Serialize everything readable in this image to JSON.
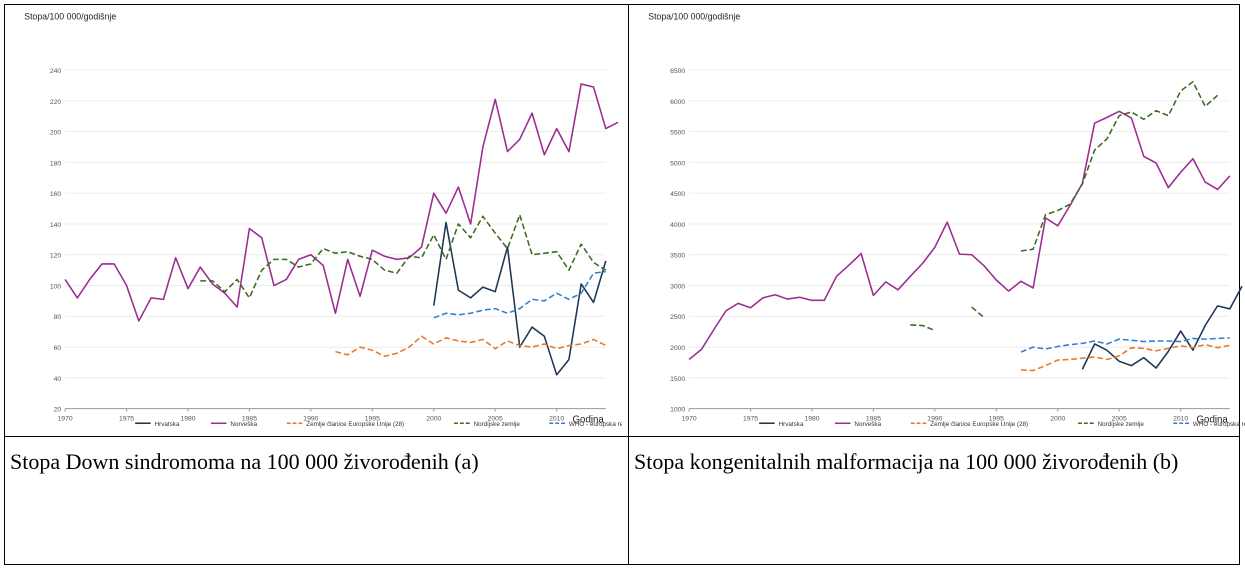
{
  "captions": {
    "a": "Stopa Down sindromoma na 100 000 živorođenih (a)",
    "b": "Stopa kongenitalnih malformacija na 100 000 živorođenih (b)"
  },
  "colors": {
    "Hrvatska": "#1f3552",
    "Norveška": "#9c2b92",
    "Zemlje članice Europske Unije (28)": "#e8782a",
    "Nordijske zemlje": "#3a6b1f",
    "WHO - europska regija": "#2f7fd0"
  },
  "chart_data": [
    {
      "type": "line",
      "title": "",
      "ylabel": "Stopa/100 000/godišnje",
      "xlabel": "Godina",
      "xlim": [
        1970,
        2014
      ],
      "ylim": [
        20,
        250
      ],
      "xticks": [
        1970,
        1975,
        1980,
        1985,
        1990,
        1995,
        2000,
        2005,
        2010
      ],
      "yticks": [
        20,
        40,
        60,
        80,
        100,
        120,
        140,
        160,
        180,
        200,
        220,
        240
      ],
      "legend_position": "bottom",
      "series": [
        {
          "name": "Hrvatska",
          "style": "solid",
          "points": [
            [
              2000,
              87
            ],
            [
              2001,
              141
            ],
            [
              2002,
              97
            ],
            [
              2003,
              92
            ],
            [
              2004,
              99
            ],
            [
              2005,
              96
            ],
            [
              2006,
              125
            ],
            [
              2007,
              60
            ],
            [
              2008,
              73
            ],
            [
              2009,
              67
            ],
            [
              2010,
              42
            ],
            [
              2011,
              52
            ],
            [
              2012,
              101
            ],
            [
              2013,
              89
            ],
            [
              2014,
              116
            ]
          ]
        },
        {
          "name": "Norveška",
          "style": "solid",
          "points": [
            [
              1970,
              104
            ],
            [
              1971,
              92
            ],
            [
              1972,
              104
            ],
            [
              1973,
              114
            ],
            [
              1974,
              114
            ],
            [
              1975,
              100
            ],
            [
              1976,
              77
            ],
            [
              1977,
              92
            ],
            [
              1978,
              91
            ],
            [
              1979,
              118
            ],
            [
              1980,
              98
            ],
            [
              1981,
              112
            ],
            [
              1982,
              101
            ],
            [
              1983,
              95
            ],
            [
              1984,
              86
            ],
            [
              1985,
              137
            ],
            [
              1986,
              131
            ],
            [
              1987,
              100
            ],
            [
              1988,
              104
            ],
            [
              1989,
              117
            ],
            [
              1990,
              120
            ],
            [
              1991,
              113
            ],
            [
              1992,
              82
            ],
            [
              1993,
              117
            ],
            [
              1994,
              93
            ],
            [
              1995,
              123
            ],
            [
              1996,
              119
            ],
            [
              1997,
              117
            ],
            [
              1998,
              118
            ],
            [
              1999,
              125
            ],
            [
              2000,
              160
            ],
            [
              2001,
              147
            ],
            [
              2002,
              164
            ],
            [
              2003,
              140
            ],
            [
              2004,
              190
            ],
            [
              2005,
              221
            ],
            [
              2006,
              187
            ],
            [
              2007,
              195
            ],
            [
              2008,
              212
            ],
            [
              2009,
              185
            ],
            [
              2010,
              202
            ],
            [
              2011,
              187
            ],
            [
              2012,
              231
            ],
            [
              2013,
              229
            ],
            [
              2014,
              202
            ],
            [
              2015,
              206
            ]
          ]
        },
        {
          "name": "Zemlje članice Europske Unije (28)",
          "style": "dashed",
          "points": [
            [
              1992,
              57
            ],
            [
              1993,
              55
            ],
            [
              1994,
              60
            ],
            [
              1995,
              58
            ],
            [
              1996,
              54
            ],
            [
              1997,
              56
            ],
            [
              1998,
              60
            ],
            [
              1999,
              67
            ],
            [
              2000,
              62
            ],
            [
              2001,
              66
            ],
            [
              2002,
              64
            ],
            [
              2003,
              63
            ],
            [
              2004,
              65
            ],
            [
              2005,
              59
            ],
            [
              2006,
              64
            ],
            [
              2007,
              61
            ],
            [
              2008,
              60
            ],
            [
              2009,
              62
            ],
            [
              2010,
              59
            ],
            [
              2011,
              61
            ],
            [
              2012,
              62
            ],
            [
              2013,
              65
            ],
            [
              2014,
              61
            ]
          ]
        },
        {
          "name": "Nordijske zemlje",
          "style": "dashed",
          "points": [
            [
              1981,
              103
            ],
            [
              1982,
              103
            ],
            [
              1983,
              96
            ],
            [
              1984,
              104
            ],
            [
              1985,
              92
            ],
            [
              1986,
              110
            ],
            [
              1987,
              117
            ],
            [
              1988,
              117
            ],
            [
              1989,
              112
            ],
            [
              1990,
              114
            ],
            [
              1991,
              124
            ],
            [
              1992,
              121
            ],
            [
              1993,
              122
            ],
            [
              1994,
              119
            ],
            [
              1995,
              117
            ],
            [
              1996,
              110
            ],
            [
              1997,
              108
            ],
            [
              1998,
              119
            ],
            [
              1999,
              118
            ],
            [
              2000,
              133
            ],
            [
              2001,
              117
            ],
            [
              2002,
              140
            ],
            [
              2003,
              131
            ],
            [
              2004,
              145
            ],
            [
              2005,
              134
            ],
            [
              2006,
              124
            ],
            [
              2007,
              146
            ],
            [
              2008,
              120
            ],
            [
              2009,
              121
            ],
            [
              2010,
              122
            ],
            [
              2011,
              110
            ],
            [
              2012,
              127
            ],
            [
              2013,
              115
            ],
            [
              2014,
              110
            ]
          ]
        },
        {
          "name": "WHO - europska regija",
          "style": "dashed",
          "points": [
            [
              2000,
              79
            ],
            [
              2001,
              82
            ],
            [
              2002,
              81
            ],
            [
              2003,
              82
            ],
            [
              2004,
              84
            ],
            [
              2005,
              85
            ],
            [
              2006,
              82
            ],
            [
              2007,
              85
            ],
            [
              2008,
              91
            ],
            [
              2009,
              90
            ],
            [
              2010,
              95
            ],
            [
              2011,
              91
            ],
            [
              2012,
              95
            ],
            [
              2013,
              108
            ],
            [
              2014,
              109
            ]
          ]
        }
      ]
    },
    {
      "type": "line",
      "title": "",
      "ylabel": "Stopa/100 000/godišnje",
      "xlabel": "Godina",
      "xlim": [
        1970,
        2014
      ],
      "ylim": [
        1000,
        6750
      ],
      "xticks": [
        1970,
        1975,
        1980,
        1985,
        1990,
        1995,
        2000,
        2005,
        2010
      ],
      "yticks": [
        1000,
        1500,
        2000,
        2500,
        3000,
        3500,
        4000,
        4500,
        5000,
        5500,
        6000,
        6500
      ],
      "legend_position": "bottom",
      "series": [
        {
          "name": "Hrvatska",
          "style": "solid",
          "points": [
            [
              2002,
              1640
            ],
            [
              2003,
              2050
            ],
            [
              2004,
              1950
            ],
            [
              2005,
              1770
            ],
            [
              2006,
              1700
            ],
            [
              2007,
              1830
            ],
            [
              2008,
              1660
            ],
            [
              2009,
              1930
            ],
            [
              2010,
              2260
            ],
            [
              2011,
              1950
            ],
            [
              2012,
              2350
            ],
            [
              2013,
              2670
            ],
            [
              2014,
              2620
            ],
            [
              2015,
              2990
            ]
          ]
        },
        {
          "name": "Norveška",
          "style": "solid",
          "points": [
            [
              1970,
              1800
            ],
            [
              1971,
              1960
            ],
            [
              1972,
              2280
            ],
            [
              1973,
              2590
            ],
            [
              1974,
              2710
            ],
            [
              1975,
              2640
            ],
            [
              1976,
              2800
            ],
            [
              1977,
              2850
            ],
            [
              1978,
              2780
            ],
            [
              1979,
              2810
            ],
            [
              1980,
              2760
            ],
            [
              1981,
              2760
            ],
            [
              1982,
              3150
            ],
            [
              1983,
              3330
            ],
            [
              1984,
              3520
            ],
            [
              1985,
              2840
            ],
            [
              1986,
              3060
            ],
            [
              1987,
              2930
            ],
            [
              1988,
              3150
            ],
            [
              1989,
              3360
            ],
            [
              1990,
              3620
            ],
            [
              1991,
              4030
            ],
            [
              1992,
              3510
            ],
            [
              1993,
              3500
            ],
            [
              1994,
              3320
            ],
            [
              1995,
              3090
            ],
            [
              1996,
              2910
            ],
            [
              1997,
              3070
            ],
            [
              1998,
              2960
            ],
            [
              1999,
              4100
            ],
            [
              2000,
              3970
            ],
            [
              2001,
              4300
            ],
            [
              2002,
              4660
            ],
            [
              2003,
              5640
            ],
            [
              2004,
              5730
            ],
            [
              2005,
              5830
            ],
            [
              2006,
              5720
            ],
            [
              2007,
              5100
            ],
            [
              2008,
              4990
            ],
            [
              2009,
              4590
            ],
            [
              2010,
              4840
            ],
            [
              2011,
              5060
            ],
            [
              2012,
              4680
            ],
            [
              2013,
              4560
            ],
            [
              2014,
              4780
            ]
          ]
        },
        {
          "name": "Zemlje članice Europske Unije (28)",
          "style": "dashed",
          "points": [
            [
              1997,
              1630
            ],
            [
              1998,
              1620
            ],
            [
              1999,
              1700
            ],
            [
              2000,
              1790
            ],
            [
              2001,
              1800
            ],
            [
              2002,
              1820
            ],
            [
              2003,
              1840
            ],
            [
              2004,
              1800
            ],
            [
              2005,
              1860
            ],
            [
              2006,
              1990
            ],
            [
              2007,
              1980
            ],
            [
              2008,
              1940
            ],
            [
              2009,
              1980
            ],
            [
              2010,
              2020
            ],
            [
              2011,
              1990
            ],
            [
              2012,
              2040
            ],
            [
              2013,
              1990
            ],
            [
              2014,
              2030
            ]
          ]
        },
        {
          "name": "Nordijske zemlje",
          "style": "dashed",
          "segments": [
            [
              [
                1988,
                2360
              ],
              [
                1989,
                2350
              ],
              [
                1990,
                2270
              ]
            ],
            [
              [
                1993,
                2650
              ],
              [
                1994,
                2480
              ]
            ],
            [
              [
                1997,
                3560
              ],
              [
                1998,
                3590
              ],
              [
                1999,
                4150
              ],
              [
                2000,
                4220
              ],
              [
                2001,
                4320
              ],
              [
                2002,
                4650
              ],
              [
                2003,
                5200
              ],
              [
                2004,
                5380
              ],
              [
                2005,
                5760
              ],
              [
                2006,
                5820
              ],
              [
                2007,
                5700
              ],
              [
                2008,
                5840
              ],
              [
                2009,
                5760
              ],
              [
                2010,
                6160
              ],
              [
                2011,
                6310
              ],
              [
                2012,
                5910
              ],
              [
                2013,
                6090
              ]
            ]
          ]
        },
        {
          "name": "WHO - europska regija",
          "style": "dashed",
          "points": [
            [
              1997,
              1920
            ],
            [
              1998,
              2000
            ],
            [
              1999,
              1970
            ],
            [
              2000,
              2010
            ],
            [
              2001,
              2040
            ],
            [
              2002,
              2060
            ],
            [
              2003,
              2100
            ],
            [
              2004,
              2050
            ],
            [
              2005,
              2130
            ],
            [
              2006,
              2110
            ],
            [
              2007,
              2090
            ],
            [
              2008,
              2100
            ],
            [
              2009,
              2100
            ],
            [
              2010,
              2090
            ],
            [
              2011,
              2140
            ],
            [
              2012,
              2130
            ],
            [
              2013,
              2140
            ],
            [
              2014,
              2150
            ]
          ]
        }
      ]
    }
  ]
}
